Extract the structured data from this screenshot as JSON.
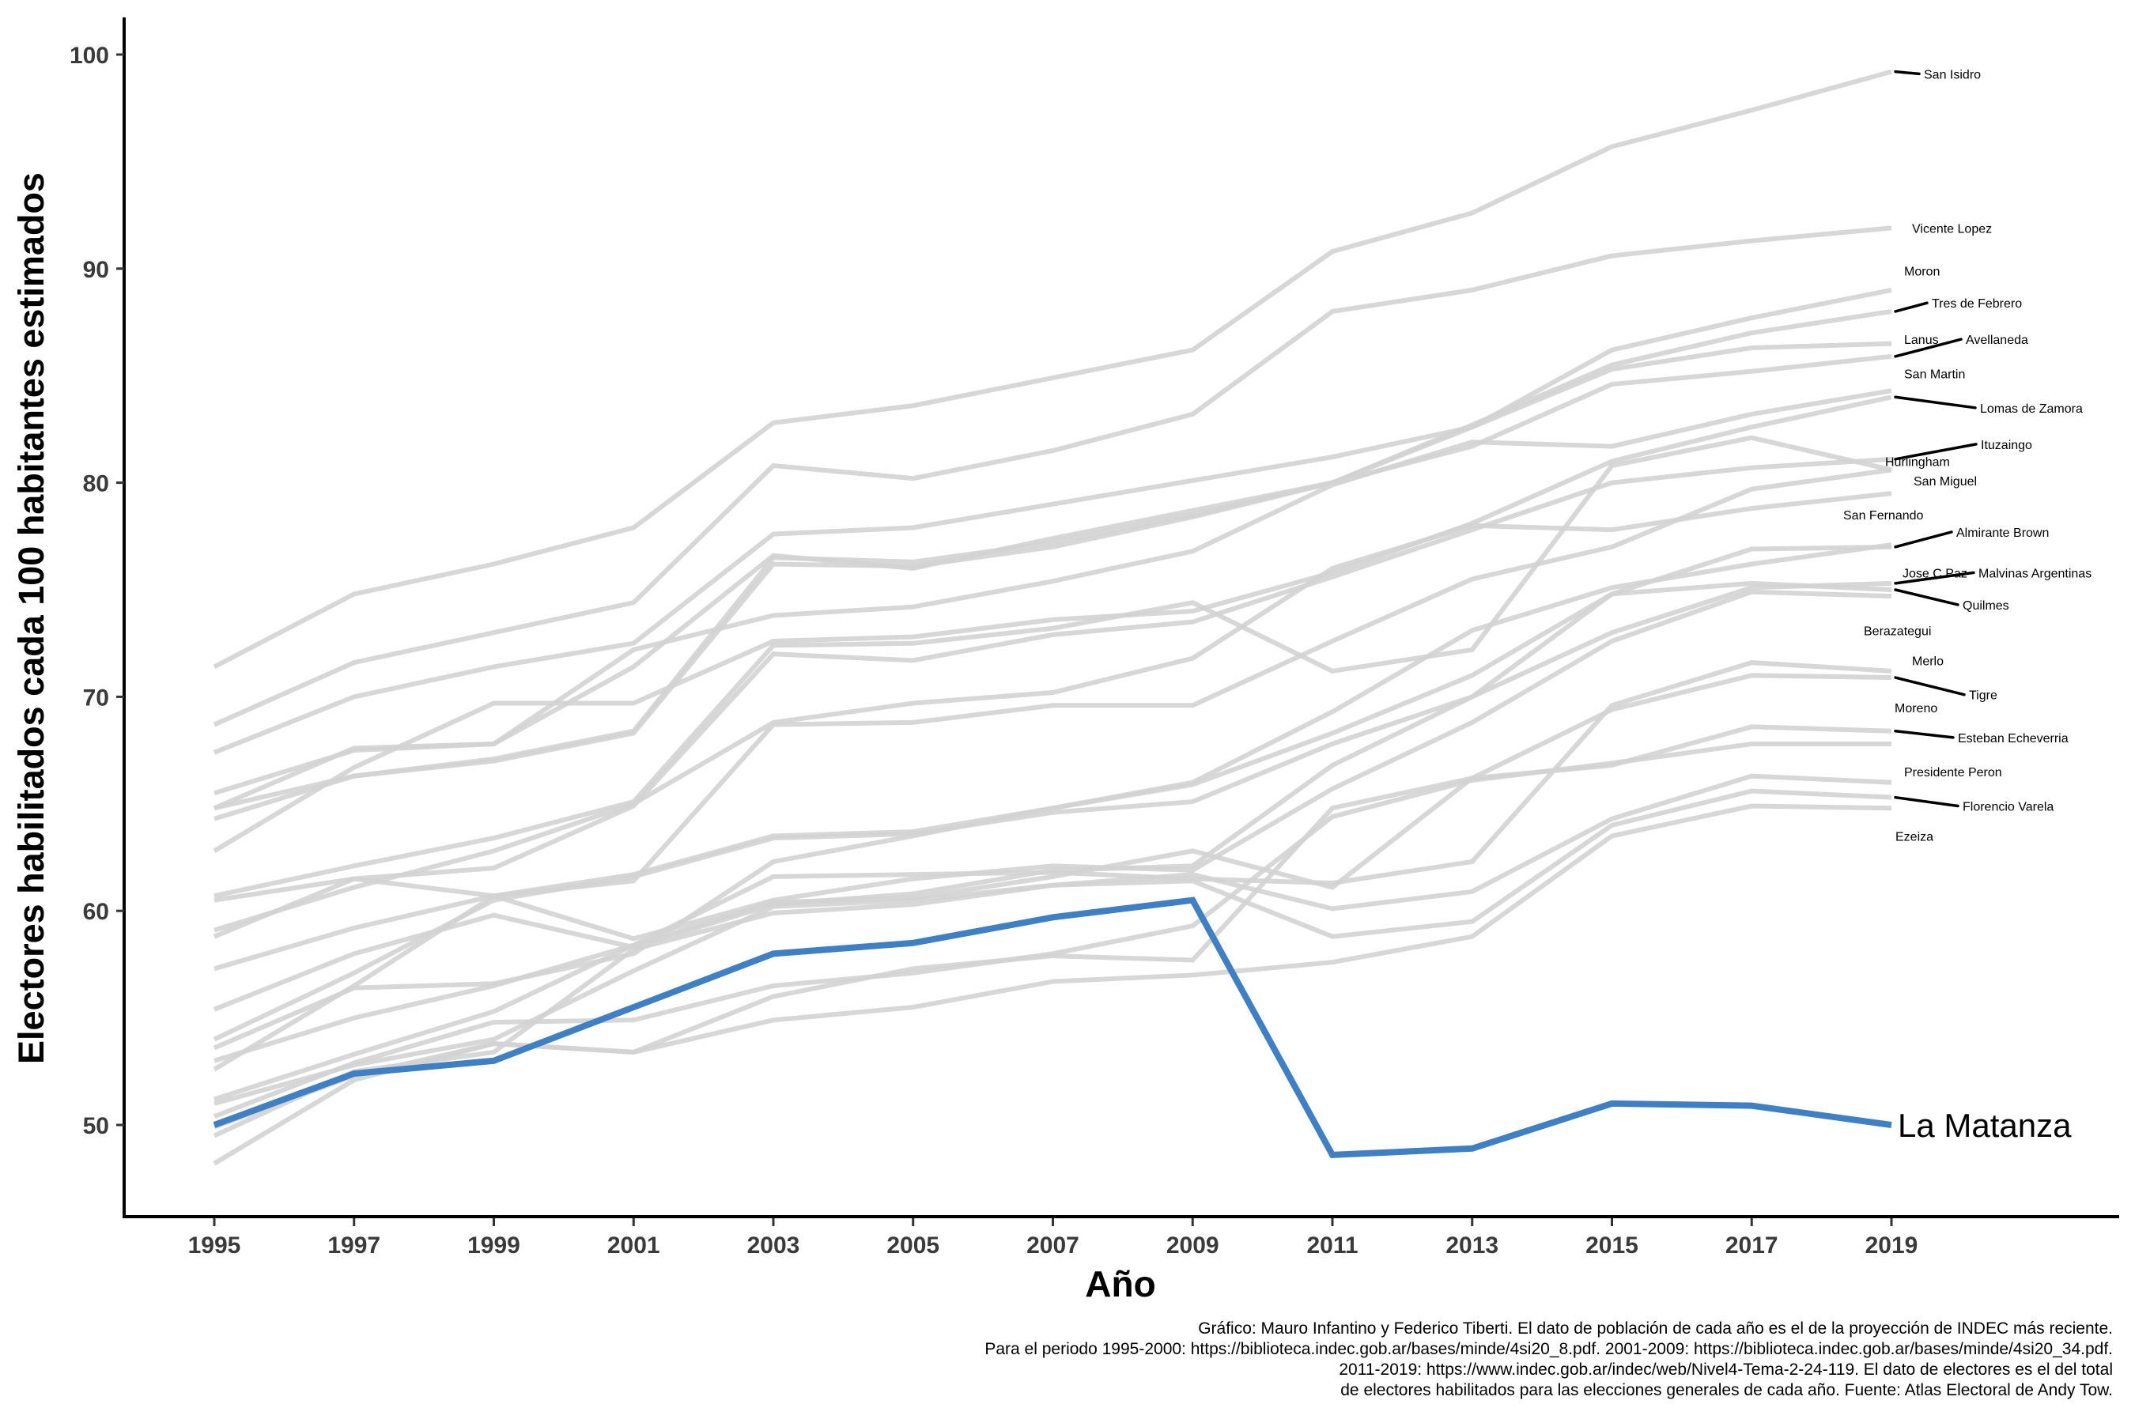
{
  "chart_data": {
    "type": "line",
    "xlabel": "Año",
    "ylabel": "Electores habilitados cada 100 habitantes estimados",
    "x": [
      1995,
      1997,
      1999,
      2001,
      2003,
      2005,
      2007,
      2009,
      2011,
      2013,
      2015,
      2017,
      2019
    ],
    "x_ticks": [
      "1995",
      "1997",
      "1999",
      "2001",
      "2003",
      "2005",
      "2007",
      "2009",
      "2011",
      "2013",
      "2015",
      "2017",
      "2019"
    ],
    "y_ticks": [
      "50",
      "60",
      "70",
      "80",
      "90",
      "100"
    ],
    "y_tick_values": [
      50,
      60,
      70,
      80,
      90,
      100
    ],
    "xlim": [
      1993.5,
      2022.8
    ],
    "ylim": [
      45.5,
      101.8
    ],
    "grid": false,
    "highlight_color": "#3f7fc4",
    "background_color": "#d3d3d3",
    "highlight": {
      "name": "La Matanza",
      "values": [
        50.0,
        52.4,
        53.0,
        55.5,
        58.0,
        58.5,
        59.7,
        60.5,
        48.6,
        48.9,
        51.0,
        50.9,
        50.0
      ]
    },
    "series": [
      {
        "name": "San Isidro",
        "values": [
          71.4,
          74.8,
          76.2,
          77.9,
          82.8,
          83.6,
          84.9,
          86.2,
          90.8,
          92.6,
          95.7,
          97.4,
          99.2
        ],
        "label_y": 99.1
      },
      {
        "name": "Vicente Lopez",
        "values": [
          68.7,
          71.6,
          73.0,
          74.4,
          80.8,
          80.2,
          81.5,
          83.2,
          88.0,
          89.0,
          90.6,
          91.3,
          91.9
        ],
        "label_y": 91.9
      },
      {
        "name": "Moron",
        "values": [
          67.4,
          70.0,
          71.4,
          72.5,
          77.6,
          77.9,
          79.0,
          80.1,
          81.2,
          82.6,
          86.2,
          87.7,
          89.0
        ],
        "label_y": 89.9
      },
      {
        "name": "Tres de Febrero",
        "values": [
          65.5,
          67.5,
          67.8,
          71.4,
          76.6,
          76.0,
          77.4,
          78.7,
          80.0,
          82.7,
          85.5,
          87.0,
          88.0
        ],
        "label_y": 88.4
      },
      {
        "name": "Lanus",
        "values": [
          64.8,
          66.3,
          67.1,
          68.4,
          76.5,
          76.3,
          77.2,
          78.5,
          80.0,
          82.6,
          85.3,
          86.3,
          86.5
        ],
        "label_y": 86.7
      },
      {
        "name": "Avellaneda",
        "values": [
          64.3,
          66.3,
          67.0,
          68.3,
          76.2,
          76.1,
          77.0,
          78.4,
          80.0,
          81.7,
          84.6,
          85.2,
          85.9
        ],
        "label_y": 86.7
      },
      {
        "name": "San Martin",
        "values": [
          64.8,
          67.6,
          67.8,
          72.2,
          73.8,
          74.2,
          75.4,
          76.8,
          79.9,
          81.9,
          81.7,
          83.2,
          84.3
        ],
        "label_y": 85.1
      },
      {
        "name": "Lomas de Zamora",
        "values": [
          62.8,
          66.7,
          69.7,
          69.7,
          72.6,
          72.8,
          73.6,
          74.0,
          75.8,
          78.1,
          81.0,
          82.6,
          84.0
        ],
        "label_y": 83.5
      },
      {
        "name": "Hurlingham",
        "values": [
          60.7,
          62.1,
          63.4,
          65.1,
          72.4,
          72.5,
          73.2,
          74.4,
          71.2,
          72.2,
          80.8,
          82.1,
          80.6
        ],
        "label_y": 81.0
      },
      {
        "name": "Ituzaingo",
        "values": [
          60.5,
          61.5,
          62.0,
          64.9,
          72.0,
          71.7,
          72.9,
          73.5,
          75.6,
          77.8,
          80.0,
          80.7,
          81.1
        ],
        "label_y": 81.8
      },
      {
        "name": "San Miguel",
        "values": [
          59.1,
          61.1,
          62.8,
          65.0,
          68.8,
          69.7,
          70.2,
          71.8,
          76.0,
          78.0,
          77.8,
          78.8,
          79.5
        ],
        "label_y": 80.1
      },
      {
        "name": "San Fernando",
        "values": [
          58.8,
          61.5,
          60.7,
          61.4,
          68.7,
          68.8,
          69.6,
          69.6,
          72.6,
          75.5,
          77.0,
          79.7,
          80.6
        ],
        "label_y": 78.5
      },
      {
        "name": "Almirante Brown",
        "values": [
          57.3,
          59.2,
          60.7,
          61.7,
          63.5,
          63.7,
          64.8,
          65.9,
          68.3,
          71.0,
          74.8,
          76.9,
          77.0
        ],
        "label_y": 77.7
      },
      {
        "name": "Jose C Paz",
        "values": [
          53.6,
          56.4,
          56.6,
          58.0,
          62.3,
          63.5,
          64.8,
          66.0,
          69.3,
          73.1,
          75.1,
          76.2,
          77.1
        ],
        "label_y": 75.8
      },
      {
        "name": "Malvinas Argentinas",
        "values": [
          55.4,
          58.0,
          59.8,
          58.3,
          60.3,
          60.8,
          61.9,
          62.1,
          66.8,
          70.0,
          73.0,
          75.1,
          75.3
        ],
        "label_y": 75.8
      },
      {
        "name": "Quilmes",
        "values": [
          54.0,
          57.1,
          60.5,
          61.6,
          63.4,
          63.6,
          64.6,
          65.1,
          67.8,
          70.0,
          74.8,
          75.3,
          75.0
        ],
        "label_y": 74.3
      },
      {
        "name": "Berazategui",
        "values": [
          52.6,
          56.5,
          60.7,
          58.7,
          60.5,
          61.5,
          62.1,
          61.9,
          65.7,
          68.8,
          72.6,
          74.9,
          74.7
        ],
        "label_y": 73.1
      },
      {
        "name": "Merlo",
        "values": [
          53.0,
          55.0,
          56.5,
          58.4,
          61.6,
          61.7,
          61.8,
          61.5,
          61.3,
          62.3,
          69.6,
          71.6,
          71.2
        ],
        "label_y": 71.7
      },
      {
        "name": "Tigre",
        "values": [
          51.2,
          53.3,
          55.3,
          58.4,
          60.4,
          60.6,
          61.6,
          62.8,
          61.1,
          66.2,
          69.4,
          71.0,
          70.9
        ],
        "label_y": 70.1
      },
      {
        "name": "Moreno",
        "values": [
          50.4,
          52.9,
          54.8,
          54.9,
          56.5,
          57.1,
          58.0,
          59.3,
          64.4,
          66.1,
          66.9,
          67.8,
          67.8
        ],
        "label_y": 69.5
      },
      {
        "name": "Esteban Echeverria",
        "values": [
          49.9,
          52.3,
          53.8,
          53.4,
          56.0,
          57.3,
          57.9,
          57.7,
          64.8,
          66.2,
          66.8,
          68.6,
          68.4
        ],
        "label_y": 68.1
      },
      {
        "name": "Presidente Peron",
        "values": [
          51.0,
          52.8,
          54.0,
          57.2,
          60.2,
          60.5,
          61.2,
          61.7,
          60.1,
          60.9,
          64.3,
          66.3,
          66.0
        ],
        "label_y": 66.5
      },
      {
        "name": "Florencio Varela",
        "values": [
          49.5,
          52.5,
          53.4,
          58.2,
          59.9,
          60.3,
          61.2,
          61.4,
          58.8,
          59.5,
          64.0,
          65.6,
          65.3
        ],
        "label_y": 64.9
      },
      {
        "name": "Ezeiza",
        "values": [
          48.2,
          52.1,
          53.8,
          53.4,
          54.9,
          55.5,
          56.7,
          57.0,
          57.6,
          58.8,
          63.5,
          64.9,
          64.8
        ],
        "label_y": 63.5
      }
    ],
    "label_links": [
      "San Isidro",
      "Tres de Febrero",
      "Avellaneda",
      "Lomas de Zamora",
      "Ituzaingo",
      "Almirante Brown",
      "Malvinas Argentinas",
      "Quilmes",
      "Tigre",
      "Esteban Echeverria",
      "Florencio Varela"
    ]
  },
  "caption": {
    "lines": [
      "Gráfico: Mauro Infantino y Federico Tiberti. El dato de población de cada año es el de la proyección de INDEC más reciente.",
      "Para el periodo 1995-2000: https://biblioteca.indec.gob.ar/bases/minde/4si20_8.pdf. 2001-2009: https://biblioteca.indec.gob.ar/bases/minde/4si20_34.pdf.",
      "2011-2019: https://www.indec.gob.ar/indec/web/Nivel4-Tema-2-24-119. El dato de electores es el del total",
      "de electores habilitados para las elecciones generales de cada año. Fuente: Atlas Electoral de Andy Tow."
    ]
  }
}
